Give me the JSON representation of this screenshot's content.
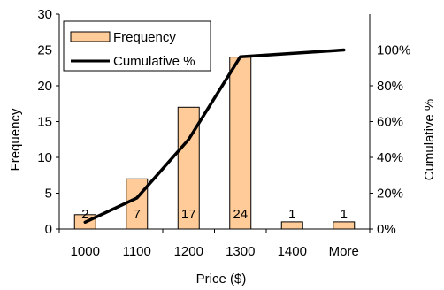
{
  "chart_data": {
    "type": "bar",
    "categories": [
      "1000",
      "1100",
      "1200",
      "1300",
      "1400",
      "More"
    ],
    "series": [
      {
        "name": "Frequency",
        "type": "bar",
        "axis": "left",
        "color": "#FFCC99",
        "values": [
          2,
          7,
          17,
          24,
          1,
          1
        ]
      },
      {
        "name": "Cumulative %",
        "type": "line",
        "axis": "right",
        "color": "#000000",
        "values": [
          3.8,
          17.3,
          50.0,
          96.2,
          98.1,
          100.0
        ]
      }
    ],
    "data_labels": [
      "2",
      "7",
      "17",
      "24",
      "1",
      "1"
    ],
    "xlabel": "Price ($)",
    "ylabel": "Frequency",
    "y2label": "Cumulative %",
    "ylim": [
      0,
      30
    ],
    "yticks": [
      "0",
      "5",
      "10",
      "15",
      "20",
      "25",
      "30"
    ],
    "y2lim": [
      0,
      120
    ],
    "y2ticks": [
      "0%",
      "20%",
      "40%",
      "60%",
      "80%",
      "100%"
    ],
    "grid": false,
    "legend": "top-left",
    "bar_edge_color": "#000000"
  }
}
